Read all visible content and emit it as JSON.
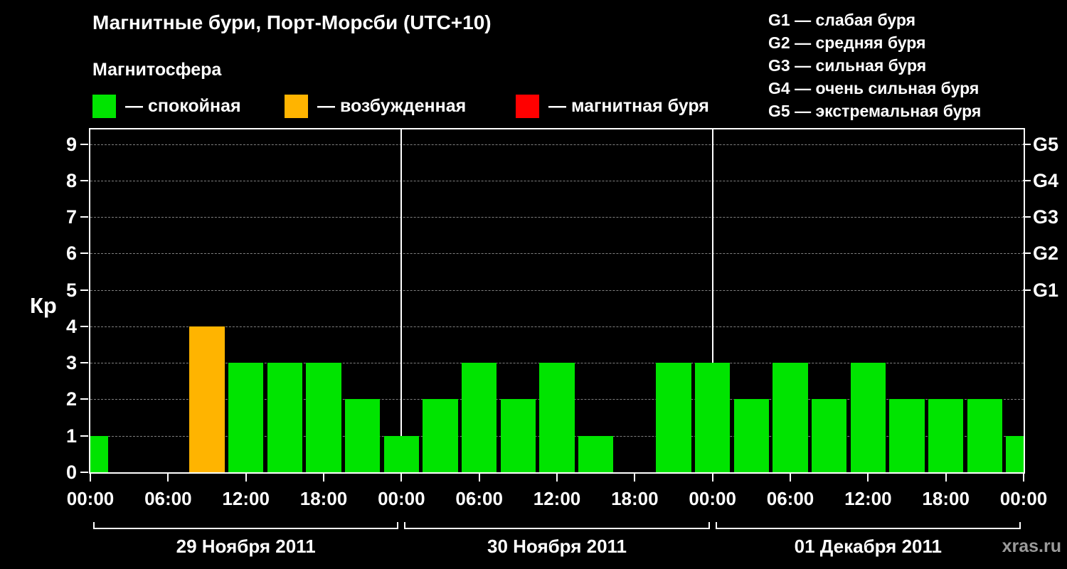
{
  "header": {
    "title": "Магнитные бури, Порт-Морсби (UTC+10)",
    "subtitle": "Магнитосфера"
  },
  "legend": {
    "items": [
      {
        "key": "quiet",
        "label": "— спокойная",
        "color": "#00e400"
      },
      {
        "key": "active",
        "label": "— возбужденная",
        "color": "#ffb400"
      },
      {
        "key": "storm",
        "label": "— магнитная буря",
        "color": "#ff0000"
      }
    ]
  },
  "storm_scale": [
    "G1 — слабая буря",
    "G2 — средняя буря",
    "G3 — сильная буря",
    "G4 — очень сильная буря",
    "G5 — экстремальная буря"
  ],
  "watermark": "xras.ru",
  "chart_data": {
    "type": "bar",
    "title": "Магнитные бури, Порт-Морсби (UTC+10)",
    "ylabel": "Кр",
    "ylim": [
      0,
      9.4
    ],
    "yticks": [
      0,
      1,
      2,
      3,
      4,
      5,
      6,
      7,
      8,
      9
    ],
    "hours_span": 72,
    "bar_width_hours": 2.7,
    "grid": "dashed-horizontal",
    "points": [
      {
        "hour": 0,
        "kp": 1
      },
      {
        "hour": 9,
        "kp": 4
      },
      {
        "hour": 12,
        "kp": 3
      },
      {
        "hour": 15,
        "kp": 3
      },
      {
        "hour": 18,
        "kp": 3
      },
      {
        "hour": 21,
        "kp": 2
      },
      {
        "hour": 24,
        "kp": 1
      },
      {
        "hour": 27,
        "kp": 2
      },
      {
        "hour": 30,
        "kp": 3
      },
      {
        "hour": 33,
        "kp": 2
      },
      {
        "hour": 36,
        "kp": 3
      },
      {
        "hour": 39,
        "kp": 1
      },
      {
        "hour": 45,
        "kp": 3
      },
      {
        "hour": 48,
        "kp": 3
      },
      {
        "hour": 51,
        "kp": 2
      },
      {
        "hour": 54,
        "kp": 3
      },
      {
        "hour": 57,
        "kp": 2
      },
      {
        "hour": 60,
        "kp": 3
      },
      {
        "hour": 63,
        "kp": 2
      },
      {
        "hour": 66,
        "kp": 2
      },
      {
        "hour": 69,
        "kp": 2
      },
      {
        "hour": 72,
        "kp": 1
      }
    ],
    "xticks": [
      {
        "hour": 0,
        "label": "00:00"
      },
      {
        "hour": 6,
        "label": "06:00"
      },
      {
        "hour": 12,
        "label": "12:00"
      },
      {
        "hour": 18,
        "label": "18:00"
      },
      {
        "hour": 24,
        "label": "00:00"
      },
      {
        "hour": 30,
        "label": "06:00"
      },
      {
        "hour": 36,
        "label": "12:00"
      },
      {
        "hour": 42,
        "label": "18:00"
      },
      {
        "hour": 48,
        "label": "00:00"
      },
      {
        "hour": 54,
        "label": "06:00"
      },
      {
        "hour": 60,
        "label": "12:00"
      },
      {
        "hour": 66,
        "label": "18:00"
      },
      {
        "hour": 72,
        "label": "00:00"
      }
    ],
    "day_boundaries_hours": [
      24,
      48
    ],
    "days": [
      {
        "label": "29 Ноября 2011",
        "start_hour": 0,
        "end_hour": 24
      },
      {
        "label": "30 Ноября 2011",
        "start_hour": 24,
        "end_hour": 48
      },
      {
        "label": "01 Декабря 2011",
        "start_hour": 48,
        "end_hour": 72
      }
    ],
    "right_axis": [
      {
        "value": 5,
        "label": "G1"
      },
      {
        "value": 6,
        "label": "G2"
      },
      {
        "value": 7,
        "label": "G3"
      },
      {
        "value": 8,
        "label": "G4"
      },
      {
        "value": 9,
        "label": "G5"
      }
    ],
    "thresholds": {
      "active_min": 4,
      "storm_min": 5
    },
    "colors": {
      "quiet": "#00e400",
      "active": "#ffb400",
      "storm": "#ff0000",
      "grid": "#808080",
      "axis": "#ffffff",
      "background": "#000000"
    }
  }
}
